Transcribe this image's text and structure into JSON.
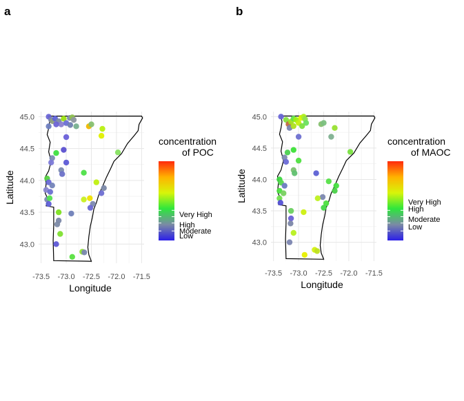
{
  "chart_data": [
    {
      "type": "scatter",
      "panel_label": "a",
      "xlabel": "Longitude",
      "ylabel": "Latitude",
      "xlim": [
        -73.55,
        -71.45
      ],
      "ylim": [
        42.7,
        45.08
      ],
      "x_ticks": [
        "-73.5",
        "-73.0",
        "-72.5",
        "-72.0",
        "-71.5"
      ],
      "y_ticks": [
        "43.0",
        "43.5",
        "44.0",
        "44.5",
        "45.0"
      ],
      "grid": true,
      "legend": {
        "title_lines": [
          "concentration",
          "of POC"
        ],
        "placement": "right",
        "levels": [
          "Very High",
          "High",
          "Moderate",
          "Low"
        ],
        "gradient": [
          "#2b1fe8",
          "#7b8aa5",
          "#2ee63d",
          "#d7f50a",
          "#ffb300",
          "#ff2a0c"
        ]
      },
      "points": [
        {
          "lon": -73.35,
          "lat": 45.0,
          "c": "#6a66d6"
        },
        {
          "lon": -73.3,
          "lat": 44.95,
          "c": "#7a84b0"
        },
        {
          "lon": -73.27,
          "lat": 44.93,
          "c": "#8fa080"
        },
        {
          "lon": -73.22,
          "lat": 44.97,
          "c": "#5f62d8"
        },
        {
          "lon": -73.15,
          "lat": 44.93,
          "c": "#7b8aa5"
        },
        {
          "lon": -73.1,
          "lat": 44.88,
          "c": "#8b7fd0"
        },
        {
          "lon": -73.05,
          "lat": 44.97,
          "c": "#9be010"
        },
        {
          "lon": -73.0,
          "lat": 44.9,
          "c": "#6b6fd4"
        },
        {
          "lon": -72.93,
          "lat": 44.98,
          "c": "#7c8aa6"
        },
        {
          "lon": -72.88,
          "lat": 44.99,
          "c": "#8fc050"
        },
        {
          "lon": -72.85,
          "lat": 44.95,
          "c": "#8e96a0"
        },
        {
          "lon": -72.8,
          "lat": 44.85,
          "c": "#78b090"
        },
        {
          "lon": -72.92,
          "lat": 44.87,
          "c": "#7080b0"
        },
        {
          "lon": -73.2,
          "lat": 44.88,
          "c": "#6d63d4"
        },
        {
          "lon": -73.35,
          "lat": 44.85,
          "c": "#6f7fc0"
        },
        {
          "lon": -72.55,
          "lat": 44.85,
          "c": "#f0b800"
        },
        {
          "lon": -72.5,
          "lat": 44.88,
          "c": "#86c070"
        },
        {
          "lon": -72.28,
          "lat": 44.81,
          "c": "#b8f010"
        },
        {
          "lon": -72.3,
          "lat": 44.7,
          "c": "#e0f000"
        },
        {
          "lon": -73.0,
          "lat": 44.68,
          "c": "#6a60d8"
        },
        {
          "lon": -73.05,
          "lat": 44.48,
          "c": "#5b50d0"
        },
        {
          "lon": -73.2,
          "lat": 44.43,
          "c": "#3fe040"
        },
        {
          "lon": -73.28,
          "lat": 44.35,
          "c": "#7d8bb4"
        },
        {
          "lon": -73.3,
          "lat": 44.28,
          "c": "#7c7ad8"
        },
        {
          "lon": -73.0,
          "lat": 44.28,
          "c": "#5d5ad6"
        },
        {
          "lon": -73.1,
          "lat": 44.16,
          "c": "#7a8ab0"
        },
        {
          "lon": -73.08,
          "lat": 44.1,
          "c": "#6b71c8"
        },
        {
          "lon": -73.38,
          "lat": 44.03,
          "c": "#55d040"
        },
        {
          "lon": -73.35,
          "lat": 43.97,
          "c": "#6a6ad6"
        },
        {
          "lon": -73.28,
          "lat": 43.92,
          "c": "#7383b8"
        },
        {
          "lon": -73.4,
          "lat": 43.85,
          "c": "#8a86d0"
        },
        {
          "lon": -73.32,
          "lat": 43.82,
          "c": "#6a6fd0"
        },
        {
          "lon": -73.38,
          "lat": 43.7,
          "c": "#7b8ab0"
        },
        {
          "lon": -73.35,
          "lat": 43.63,
          "c": "#5f5fd6"
        },
        {
          "lon": -73.33,
          "lat": 43.72,
          "c": "#55e050"
        },
        {
          "lon": -72.65,
          "lat": 44.12,
          "c": "#4ee048"
        },
        {
          "lon": -72.4,
          "lat": 43.97,
          "c": "#c0f010"
        },
        {
          "lon": -72.25,
          "lat": 43.88,
          "c": "#7a88a8"
        },
        {
          "lon": -72.3,
          "lat": 43.8,
          "c": "#6e6ed2"
        },
        {
          "lon": -72.47,
          "lat": 43.63,
          "c": "#7c88b0"
        },
        {
          "lon": -72.52,
          "lat": 43.57,
          "c": "#6a68d4"
        },
        {
          "lon": -72.65,
          "lat": 43.7,
          "c": "#c8f020"
        },
        {
          "lon": -72.53,
          "lat": 43.72,
          "c": "#f0e000"
        },
        {
          "lon": -71.97,
          "lat": 44.44,
          "c": "#86e060"
        },
        {
          "lon": -73.15,
          "lat": 43.5,
          "c": "#7ee020"
        },
        {
          "lon": -73.15,
          "lat": 43.37,
          "c": "#7b88a8"
        },
        {
          "lon": -73.18,
          "lat": 43.31,
          "c": "#7c8aa6"
        },
        {
          "lon": -72.9,
          "lat": 43.48,
          "c": "#6f7fb8"
        },
        {
          "lon": -73.12,
          "lat": 43.16,
          "c": "#7fe030"
        },
        {
          "lon": -73.2,
          "lat": 43.0,
          "c": "#5d58d6"
        },
        {
          "lon": -72.68,
          "lat": 42.88,
          "c": "#90e030"
        },
        {
          "lon": -72.64,
          "lat": 42.87,
          "c": "#7a86b0"
        },
        {
          "lon": -72.88,
          "lat": 42.8,
          "c": "#58e040"
        }
      ]
    },
    {
      "type": "scatter",
      "panel_label": "b",
      "xlabel": "Longitude",
      "ylabel": "Latitude",
      "xlim": [
        -73.55,
        -71.45
      ],
      "ylim": [
        42.7,
        45.08
      ],
      "x_ticks": [
        "-73.5",
        "-73.0",
        "-72.5",
        "-72.0",
        "-71.5"
      ],
      "y_ticks": [
        "43.0",
        "43.5",
        "44.0",
        "44.5",
        "45.0"
      ],
      "grid": true,
      "legend": {
        "title_lines": [
          "concentration",
          "of MAOC"
        ],
        "placement": "right",
        "levels": [
          "Very High",
          "High",
          "Moderate",
          "Low"
        ],
        "gradient": [
          "#2b1fe8",
          "#7b8aa5",
          "#2ee63d",
          "#d7f50a",
          "#ffb300",
          "#ff2a0c"
        ]
      },
      "points": [
        {
          "lon": -73.35,
          "lat": 45.0,
          "c": "#6a66d6"
        },
        {
          "lon": -73.25,
          "lat": 44.95,
          "c": "#86e040"
        },
        {
          "lon": -73.2,
          "lat": 44.88,
          "c": "#c06a40"
        },
        {
          "lon": -73.15,
          "lat": 44.92,
          "c": "#a0e020"
        },
        {
          "lon": -73.1,
          "lat": 44.97,
          "c": "#62e048"
        },
        {
          "lon": -73.05,
          "lat": 44.95,
          "c": "#9ef010"
        },
        {
          "lon": -73.0,
          "lat": 44.9,
          "c": "#c4f010"
        },
        {
          "lon": -72.95,
          "lat": 44.98,
          "c": "#dff000"
        },
        {
          "lon": -72.9,
          "lat": 45.0,
          "c": "#b0f020"
        },
        {
          "lon": -72.87,
          "lat": 44.96,
          "c": "#8fe050"
        },
        {
          "lon": -72.85,
          "lat": 44.9,
          "c": "#6ae060"
        },
        {
          "lon": -73.18,
          "lat": 44.82,
          "c": "#7a86b0"
        },
        {
          "lon": -73.1,
          "lat": 44.85,
          "c": "#aee020"
        },
        {
          "lon": -72.93,
          "lat": 44.85,
          "c": "#7ae040"
        },
        {
          "lon": -72.55,
          "lat": 44.88,
          "c": "#86c070"
        },
        {
          "lon": -72.5,
          "lat": 44.9,
          "c": "#7cc080"
        },
        {
          "lon": -72.28,
          "lat": 44.82,
          "c": "#98e030"
        },
        {
          "lon": -72.35,
          "lat": 44.68,
          "c": "#80b090"
        },
        {
          "lon": -73.0,
          "lat": 44.68,
          "c": "#6e70d0"
        },
        {
          "lon": -73.1,
          "lat": 44.47,
          "c": "#3de038"
        },
        {
          "lon": -73.22,
          "lat": 44.43,
          "c": "#4cd050"
        },
        {
          "lon": -73.28,
          "lat": 44.35,
          "c": "#7e8ab0"
        },
        {
          "lon": -73.25,
          "lat": 44.28,
          "c": "#6a6ad6"
        },
        {
          "lon": -73.0,
          "lat": 44.3,
          "c": "#4fe040"
        },
        {
          "lon": -73.1,
          "lat": 44.15,
          "c": "#7cc070"
        },
        {
          "lon": -73.08,
          "lat": 44.1,
          "c": "#60c070"
        },
        {
          "lon": -73.38,
          "lat": 44.0,
          "c": "#3cd840"
        },
        {
          "lon": -73.35,
          "lat": 43.95,
          "c": "#56d650"
        },
        {
          "lon": -73.28,
          "lat": 43.9,
          "c": "#6a7cc0"
        },
        {
          "lon": -73.38,
          "lat": 43.82,
          "c": "#4ce040"
        },
        {
          "lon": -73.3,
          "lat": 43.78,
          "c": "#78d060"
        },
        {
          "lon": -73.38,
          "lat": 43.7,
          "c": "#72e050"
        },
        {
          "lon": -73.36,
          "lat": 43.63,
          "c": "#5552d6"
        },
        {
          "lon": -72.65,
          "lat": 44.1,
          "c": "#5c60d4"
        },
        {
          "lon": -72.4,
          "lat": 43.97,
          "c": "#56e048"
        },
        {
          "lon": -72.25,
          "lat": 43.9,
          "c": "#46e040"
        },
        {
          "lon": -72.28,
          "lat": 43.82,
          "c": "#4ad048"
        },
        {
          "lon": -72.52,
          "lat": 43.72,
          "c": "#7c88b0"
        },
        {
          "lon": -72.45,
          "lat": 43.62,
          "c": "#4ee040"
        },
        {
          "lon": -72.5,
          "lat": 43.55,
          "c": "#46d848"
        },
        {
          "lon": -72.62,
          "lat": 43.7,
          "c": "#bef020"
        },
        {
          "lon": -71.97,
          "lat": 44.44,
          "c": "#7ae040"
        },
        {
          "lon": -73.15,
          "lat": 43.5,
          "c": "#6cd060"
        },
        {
          "lon": -73.15,
          "lat": 43.38,
          "c": "#6a60d6"
        },
        {
          "lon": -73.16,
          "lat": 43.3,
          "c": "#7b86a8"
        },
        {
          "lon": -72.9,
          "lat": 43.48,
          "c": "#cef010"
        },
        {
          "lon": -73.1,
          "lat": 43.15,
          "c": "#b8f020"
        },
        {
          "lon": -73.18,
          "lat": 43.0,
          "c": "#7c86b0"
        },
        {
          "lon": -72.68,
          "lat": 42.88,
          "c": "#d4f010"
        },
        {
          "lon": -72.63,
          "lat": 42.86,
          "c": "#bee020"
        },
        {
          "lon": -72.88,
          "lat": 42.8,
          "c": "#e8f000"
        }
      ]
    }
  ]
}
